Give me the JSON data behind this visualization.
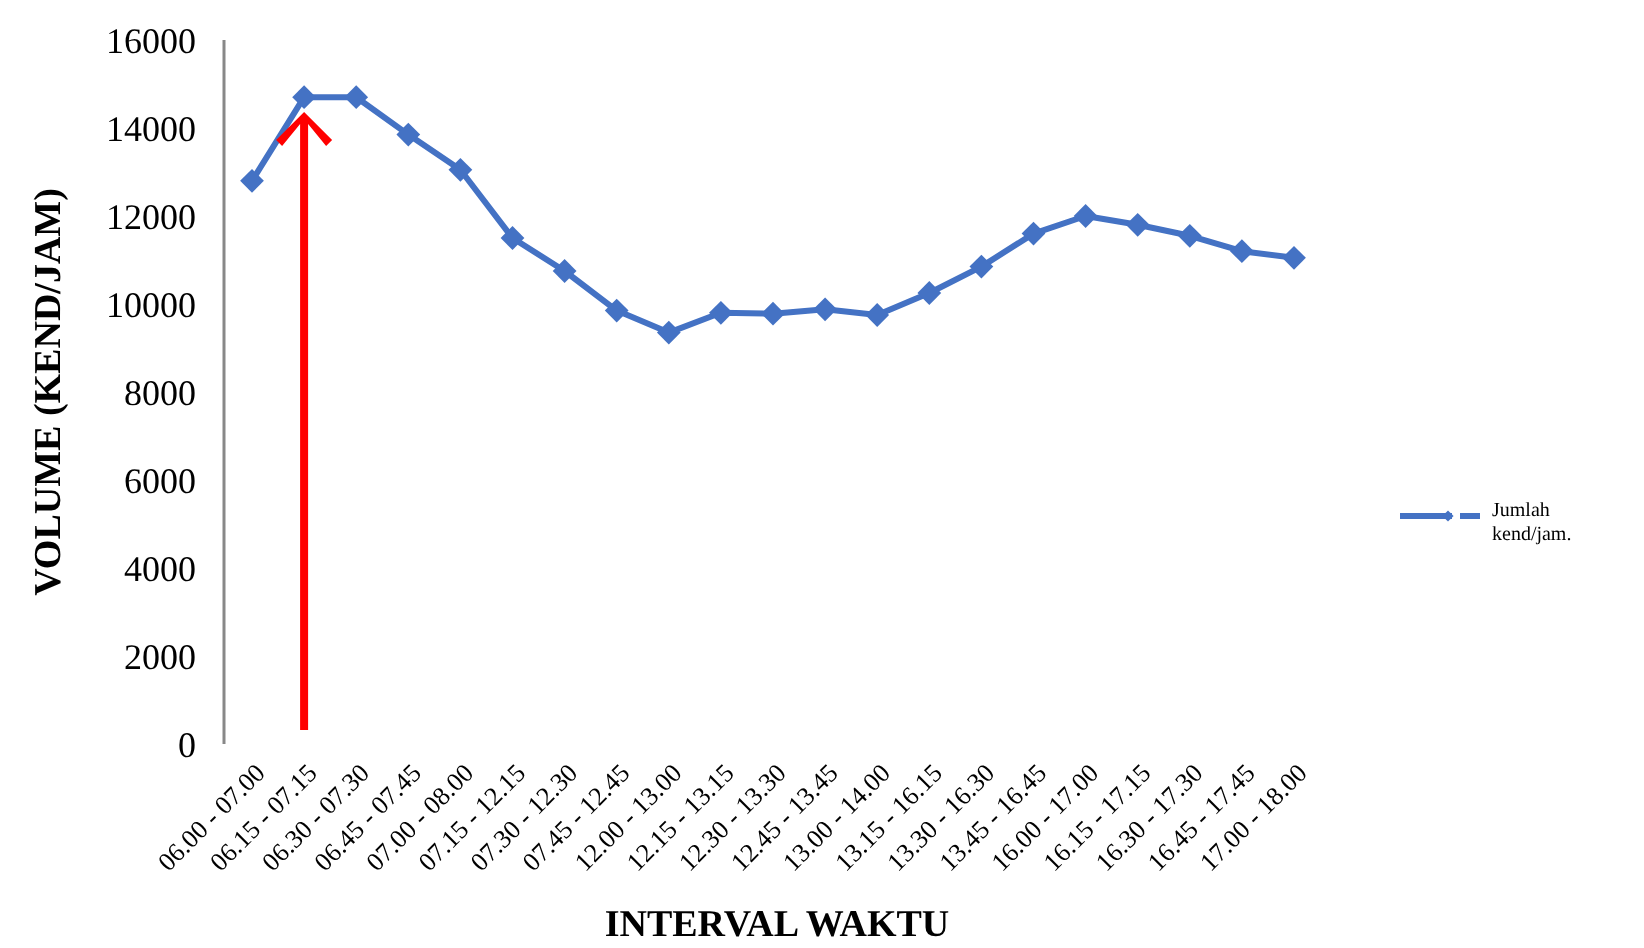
{
  "chart_data": {
    "type": "line",
    "xlabel": "INTERVAL WAKTU",
    "ylabel": "VOLUME (KEND/JAM)",
    "categories": [
      "06.00 - 07.00",
      "06.15 - 07.15",
      "06.30 - 07.30",
      "06.45 - 07.45",
      "07.00 - 08.00",
      "07.15 - 12.15",
      "07.30 - 12.30",
      "07.45 - 12.45",
      "12.00 - 13.00",
      "12.15 - 13.15",
      "12.30 - 13.30",
      "12.45 - 13.45",
      "13.00 - 14.00",
      "13.15 - 16.15",
      "13.30 - 16.30",
      "13.45 - 16.45",
      "16.00 - 17.00",
      "16.15 - 17.15",
      "16.30 - 17.30",
      "16.45 - 17.45",
      "17.00 - 18.00"
    ],
    "series": [
      {
        "name": "Jumlah kend/jam.",
        "color": "#4472c4",
        "values": [
          12800,
          14700,
          14700,
          13850,
          13050,
          11500,
          10750,
          9850,
          9350,
          9800,
          9780,
          9880,
          9750,
          10250,
          10850,
          11600,
          12000,
          11800,
          11550,
          11200,
          11050
        ]
      }
    ],
    "ylim": [
      0,
      16000
    ],
    "yticks": [
      0,
      2000,
      4000,
      6000,
      8000,
      10000,
      12000,
      14000,
      16000
    ],
    "grid": false,
    "legend": "right",
    "marker": "diamond",
    "line_style": "solid"
  }
}
